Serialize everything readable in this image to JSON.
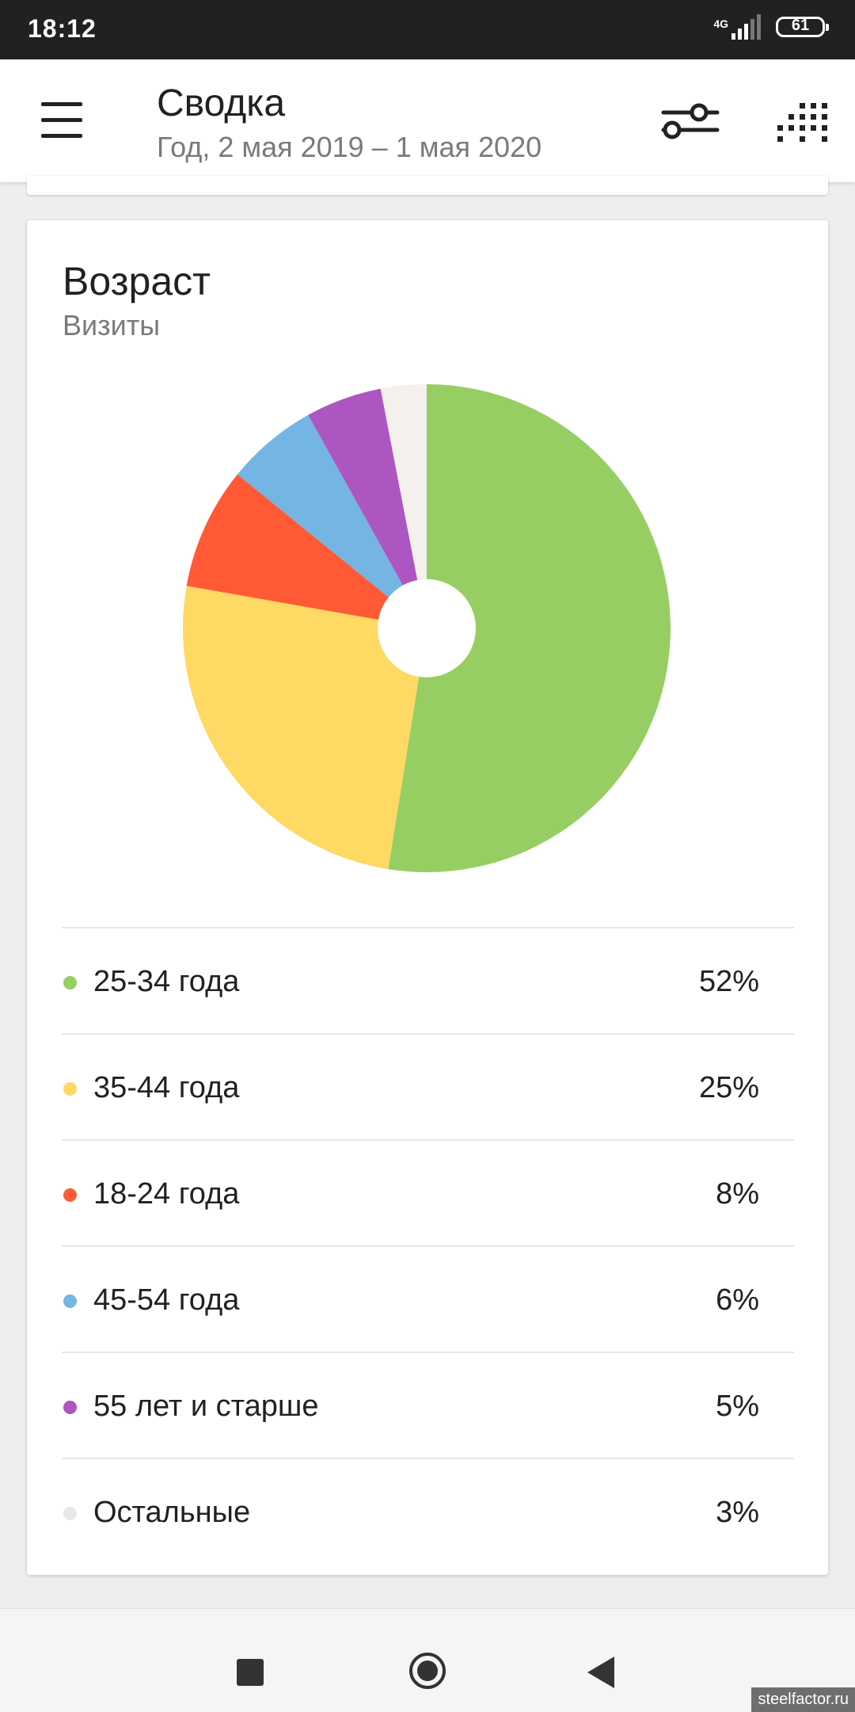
{
  "status_bar": {
    "time": "18:12",
    "network": "4G",
    "battery": "61"
  },
  "header": {
    "title": "Сводка",
    "subtitle": "Год, 2 мая 2019 – 1 мая 2020",
    "icons": [
      "menu-icon",
      "filter-icon",
      "grid-icon"
    ]
  },
  "card": {
    "title": "Возраст",
    "subtitle": "Визиты"
  },
  "chart_data": {
    "type": "pie",
    "title": "Возраст",
    "subtitle": "Визиты",
    "categories": [
      "25-34 года",
      "35-44 года",
      "18-24 года",
      "45-54 года",
      "55 лет и старше",
      "Остальные"
    ],
    "values": [
      52,
      25,
      8,
      6,
      5,
      3
    ],
    "unit": "%",
    "colors": [
      "#96ce63",
      "#fed963",
      "#ff5a35",
      "#74b5e4",
      "#ad56c1",
      "#f4f0ec"
    ]
  },
  "legend": [
    {
      "label": "25-34 года",
      "value": "52%",
      "color": "#96ce63"
    },
    {
      "label": "35-44 года",
      "value": "25%",
      "color": "#fed963"
    },
    {
      "label": "18-24 года",
      "value": "8%",
      "color": "#ff5a35"
    },
    {
      "label": "45-54 года",
      "value": "6%",
      "color": "#74b5e4"
    },
    {
      "label": "55 лет и старше",
      "value": "5%",
      "color": "#ad56c1"
    },
    {
      "label": "Остальные",
      "value": "3%",
      "color": "#e8e8e8"
    }
  ],
  "navigation": {
    "icons": [
      "recents-icon",
      "home-icon",
      "back-icon"
    ]
  },
  "watermark": "steelfactor.ru"
}
